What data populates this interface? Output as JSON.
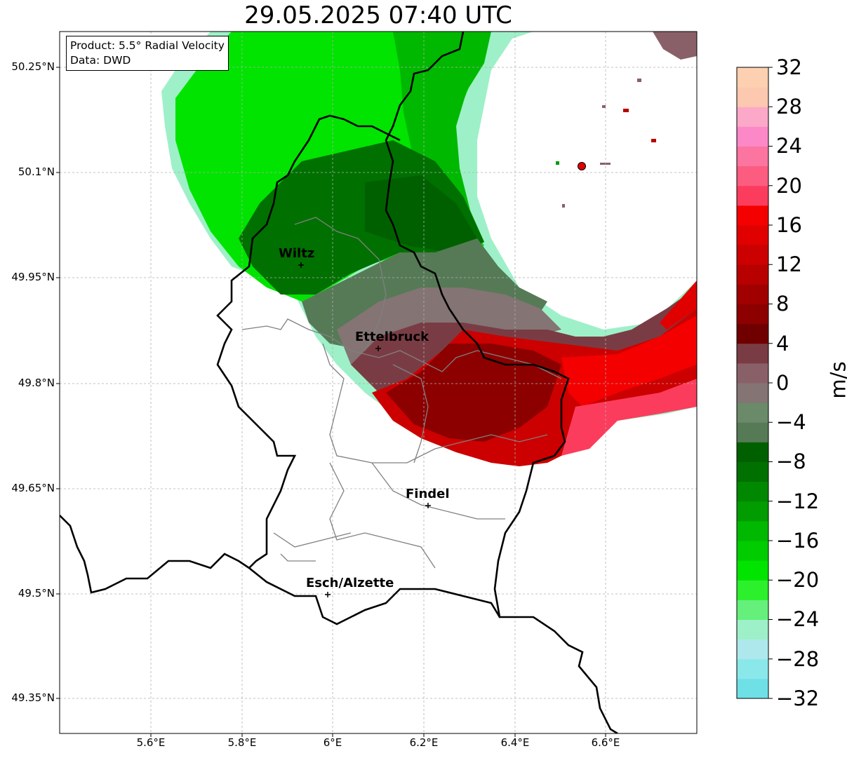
{
  "title": "29.05.2025 07:40 UTC",
  "infobox": {
    "product": "Product: 5.5° Radial Velocity",
    "data": "Data: DWD"
  },
  "lat_labels": [
    "50.25°N",
    "50.1°N",
    "49.95°N",
    "49.8°N",
    "49.65°N",
    "49.5°N",
    "49.35°N"
  ],
  "lon_labels": [
    "5.6°E",
    "5.8°E",
    "6°E",
    "6.2°E",
    "6.4°E",
    "6.6°E"
  ],
  "cities": [
    {
      "name": "Wiltz"
    },
    {
      "name": "Ettelbruck"
    },
    {
      "name": "Findel"
    },
    {
      "name": "Esch/Alzette"
    }
  ],
  "colorbar": {
    "unit": "m/s",
    "ticks": [
      "32",
      "28",
      "24",
      "20",
      "16",
      "12",
      "8",
      "4",
      "0",
      "−4",
      "−8",
      "−12",
      "−16",
      "−20",
      "−24",
      "−28",
      "−32"
    ],
    "range": [
      -32,
      32
    ],
    "colors": [
      "#6ee0e6",
      "#8ae8ea",
      "#aee8ec",
      "#9ef0c8",
      "#64f07a",
      "#2cf02c",
      "#00e400",
      "#00cc00",
      "#00b800",
      "#009c00",
      "#008800",
      "#007000",
      "#006000",
      "#567a56",
      "#6a8a6a",
      "#847474",
      "#8a6068",
      "#7a3c44",
      "#700000",
      "#8c0000",
      "#a00000",
      "#b80000",
      "#cc0000",
      "#e00000",
      "#f40000",
      "#fc3c5c",
      "#fc5c80",
      "#fc74a0",
      "#fc88c8",
      "#fca8c8",
      "#fcc8b0",
      "#fcd0b0"
    ],
    "colors_order": "bottom-to-top"
  },
  "radar_site": {
    "color": "#e00000"
  }
}
